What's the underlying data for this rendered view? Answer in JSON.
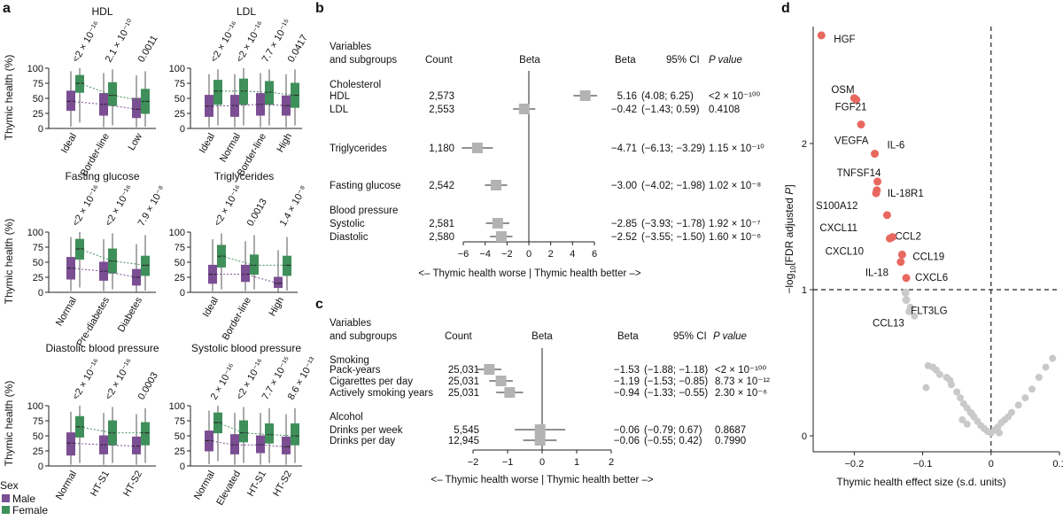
{
  "colors": {
    "male": "#7b4e93",
    "female": "#3f8f5a",
    "box_gray": "#b3b3b3",
    "hl": "#e8685f",
    "ns": "#c9c9c9"
  },
  "panel_a": {
    "letter": "a",
    "ylabel": "Thymic health (%)",
    "legend": {
      "title": "Sex",
      "items": [
        "Male",
        "Female"
      ]
    },
    "yticks": [
      "0",
      "25",
      "50",
      "75",
      "100"
    ]
  },
  "panel_b": {
    "letter": "b",
    "headers": {
      "var": "Variables",
      "var2": "and subgroups",
      "count": "Count",
      "beta_plot": "Beta",
      "beta": "Beta",
      "ci": "95% CI",
      "p": "P value"
    },
    "xticks": [
      "−6",
      "−4",
      "−2",
      "0",
      "2",
      "4",
      "6"
    ],
    "xlabel": "<– Thymic health worse | Thymic health better –>"
  },
  "panel_c": {
    "letter": "c",
    "headers": {
      "var": "Variables",
      "var2": "and subgroups",
      "count": "Count",
      "beta_plot": "Beta",
      "beta": "Beta",
      "ci": "95% CI",
      "p": "P value"
    },
    "xticks": [
      "−2",
      "−1",
      "0",
      "1",
      "2"
    ],
    "xlabel": "<– Thymic health worse | Thymic health better –>"
  },
  "panel_d": {
    "letter": "d",
    "xlabel": "Thymic health effect size (s.d. units)",
    "ylabel_main": "−log",
    "ylabel_sub": "10",
    "ylabel_rest": "[FDR adjusted ",
    "ylabel_p": "P",
    "ylabel_end": "]"
  },
  "chart_data": [
    {
      "type": "bar",
      "title": "HDL",
      "categories": [
        "Ideal",
        "Border-line",
        "Low"
      ],
      "pvalues": [
        "<2 × 10⁻¹⁶",
        "2.1 × 10⁻¹⁰",
        "0.0011"
      ],
      "series": [
        {
          "name": "Male",
          "q1": [
            30,
            22,
            18
          ],
          "median": [
            45,
            40,
            32
          ],
          "q3": [
            62,
            58,
            50
          ],
          "min": [
            3,
            2,
            2
          ],
          "max": [
            95,
            92,
            88
          ]
        },
        {
          "name": "Female",
          "q1": [
            60,
            38,
            25
          ],
          "median": [
            75,
            55,
            45
          ],
          "q3": [
            88,
            76,
            65
          ],
          "min": [
            10,
            5,
            3
          ],
          "max": [
            100,
            98,
            95
          ]
        }
      ],
      "ylim": [
        0,
        100
      ]
    },
    {
      "type": "bar",
      "title": "LDL",
      "categories": [
        "Ideal",
        "Normal",
        "Border-line",
        "High"
      ],
      "pvalues": [
        "<2 × 10⁻¹⁶",
        "<2 × 10⁻¹⁶",
        "7.7 × 10⁻¹⁵",
        "0.0417"
      ],
      "series": [
        {
          "name": "Male",
          "q1": [
            20,
            20,
            22,
            22
          ],
          "median": [
            37,
            38,
            40,
            38
          ],
          "q3": [
            55,
            55,
            58,
            54
          ],
          "min": [
            2,
            2,
            2,
            2
          ],
          "max": [
            90,
            90,
            92,
            90
          ]
        },
        {
          "name": "Female",
          "q1": [
            40,
            40,
            40,
            35
          ],
          "median": [
            62,
            62,
            60,
            55
          ],
          "q3": [
            80,
            82,
            78,
            75
          ],
          "min": [
            5,
            5,
            5,
            5
          ],
          "max": [
            98,
            100,
            98,
            98
          ]
        }
      ],
      "ylim": [
        0,
        100
      ]
    },
    {
      "type": "bar",
      "title": "Fasting glucose",
      "categories": [
        "Normal",
        "Pre-diabetes",
        "Diabetes"
      ],
      "pvalues": [
        "<2 × 10⁻¹⁶",
        "<2 × 10⁻¹⁶",
        "7.9 × 10⁻⁸"
      ],
      "series": [
        {
          "name": "Male",
          "q1": [
            22,
            20,
            12
          ],
          "median": [
            40,
            35,
            25
          ],
          "q3": [
            58,
            50,
            38
          ],
          "min": [
            2,
            2,
            1
          ],
          "max": [
            92,
            88,
            80
          ]
        },
        {
          "name": "Female",
          "q1": [
            55,
            32,
            28
          ],
          "median": [
            72,
            52,
            45
          ],
          "q3": [
            88,
            72,
            60
          ],
          "min": [
            8,
            5,
            3
          ],
          "max": [
            100,
            98,
            95
          ]
        }
      ],
      "ylim": [
        0,
        100
      ]
    },
    {
      "type": "bar",
      "title": "Triglycerides",
      "categories": [
        "Ideal",
        "Border-line",
        "High"
      ],
      "pvalues": [
        "<2 × 10⁻¹⁶",
        "0.0013",
        "1.4 × 10⁻⁸"
      ],
      "series": [
        {
          "name": "Male",
          "q1": [
            15,
            18,
            8
          ],
          "median": [
            30,
            30,
            15
          ],
          "q3": [
            45,
            45,
            25
          ],
          "min": [
            2,
            2,
            1
          ],
          "max": [
            88,
            85,
            70
          ]
        },
        {
          "name": "Female",
          "q1": [
            42,
            30,
            28
          ],
          "median": [
            60,
            45,
            45
          ],
          "q3": [
            78,
            62,
            60
          ],
          "min": [
            5,
            5,
            3
          ],
          "max": [
            98,
            95,
            92
          ]
        }
      ],
      "ylim": [
        0,
        100
      ]
    },
    {
      "type": "bar",
      "title": "Diastolic blood pressure",
      "categories": [
        "Normal",
        "HT-S1",
        "HT-S2"
      ],
      "pvalues": [
        "<2 × 10⁻¹⁶",
        "<2 × 10⁻¹⁶",
        "0.0003"
      ],
      "series": [
        {
          "name": "Male",
          "q1": [
            18,
            20,
            20
          ],
          "median": [
            38,
            35,
            33
          ],
          "q3": [
            55,
            50,
            48
          ],
          "min": [
            2,
            2,
            2
          ],
          "max": [
            90,
            88,
            86
          ]
        },
        {
          "name": "Female",
          "q1": [
            48,
            35,
            35
          ],
          "median": [
            65,
            55,
            55
          ],
          "q3": [
            82,
            75,
            72
          ],
          "min": [
            5,
            5,
            5
          ],
          "max": [
            100,
            98,
            96
          ]
        }
      ],
      "ylim": [
        0,
        100
      ]
    },
    {
      "type": "bar",
      "title": "Systolic blood pressure",
      "categories": [
        "Normal",
        "Elevated",
        "HT-S1",
        "HT-S2"
      ],
      "pvalues": [
        "2 × 10⁻¹⁶",
        "<2 × 10⁻¹⁶",
        "7.7 × 10⁻¹⁵",
        "8.6 × 10⁻¹³"
      ],
      "series": [
        {
          "name": "Male",
          "q1": [
            25,
            20,
            22,
            20
          ],
          "median": [
            42,
            35,
            35,
            32
          ],
          "q3": [
            58,
            52,
            50,
            48
          ],
          "min": [
            3,
            2,
            2,
            2
          ],
          "max": [
            92,
            88,
            88,
            86
          ]
        },
        {
          "name": "Female",
          "q1": [
            55,
            40,
            38,
            35
          ],
          "median": [
            72,
            55,
            52,
            50
          ],
          "q3": [
            88,
            75,
            70,
            70
          ],
          "min": [
            8,
            5,
            5,
            5
          ],
          "max": [
            100,
            98,
            96,
            96
          ]
        }
      ],
      "ylim": [
        0,
        100
      ]
    },
    {
      "type": "scatter",
      "title": "",
      "rows": [
        {
          "label": "Cholesterol",
          "header": true
        },
        {
          "label": "HDL",
          "count": "2,573",
          "beta": 5.16,
          "lo": 4.08,
          "hi": 6.25,
          "beta_txt": "5.16",
          "ci": "(4.08; 6.25)",
          "p": "<2 × 10⁻¹⁰⁰"
        },
        {
          "label": "LDL",
          "count": "2,553",
          "beta": -0.42,
          "lo": -1.43,
          "hi": 0.59,
          "beta_txt": "−0.42",
          "ci": "(−1.43; 0.59)",
          "p": "0.4108"
        },
        {
          "label": "Triglycerides",
          "count": "1,180",
          "beta": -4.71,
          "lo": -6.13,
          "hi": -3.29,
          "beta_txt": "−4.71",
          "ci": "(−6.13; −3.29)",
          "p": "1.15 × 10⁻¹⁰"
        },
        {
          "label": "Fasting glucose",
          "count": "2,542",
          "beta": -3.0,
          "lo": -4.02,
          "hi": -1.98,
          "beta_txt": "−3.00",
          "ci": "(−4.02; −1.98)",
          "p": "1.02 × 10⁻⁸"
        },
        {
          "label": "Blood pressure",
          "header": true
        },
        {
          "label": "Systolic",
          "count": "2,581",
          "beta": -2.85,
          "lo": -3.93,
          "hi": -1.78,
          "beta_txt": "−2.85",
          "ci": "(−3.93; −1.78)",
          "p": "1.92 × 10⁻⁷"
        },
        {
          "label": "Diastolic",
          "count": "2,580",
          "beta": -2.52,
          "lo": -3.55,
          "hi": -1.5,
          "beta_txt": "−2.52",
          "ci": "(−3.55; −1.50)",
          "p": "1.60 × 10⁻⁶"
        }
      ],
      "xlim": [
        -6,
        6
      ]
    },
    {
      "type": "scatter",
      "title": "",
      "rows": [
        {
          "label": "Smoking",
          "header": true
        },
        {
          "label": "Pack-years",
          "count": "25,031",
          "beta": -1.53,
          "lo": -1.88,
          "hi": -1.18,
          "beta_txt": "−1.53",
          "ci": "(−1.88; −1.18)",
          "p": "<2 × 10⁻¹⁰⁰"
        },
        {
          "label": "Cigarettes per day",
          "count": "25,031",
          "beta": -1.19,
          "lo": -1.53,
          "hi": -0.85,
          "beta_txt": "−1.19",
          "ci": "(−1.53; −0.85)",
          "p": "8.73 × 10⁻¹²"
        },
        {
          "label": "Actively smoking years",
          "count": "25,031",
          "beta": -0.94,
          "lo": -1.33,
          "hi": -0.55,
          "beta_txt": "−0.94",
          "ci": "(−1.33; −0.55)",
          "p": "2.30 × 10⁻⁶"
        },
        {
          "label": "Alcohol",
          "header": true
        },
        {
          "label": "Drinks per week",
          "count": "5,545",
          "beta": -0.06,
          "lo": -0.79,
          "hi": 0.67,
          "beta_txt": "−0.06",
          "ci": "(−0.79; 0.67)",
          "p": "0.8687"
        },
        {
          "label": "Drinks per day",
          "count": "12,945",
          "beta": -0.06,
          "lo": -0.55,
          "hi": 0.42,
          "beta_txt": "−0.06",
          "ci": "(−0.55; 0.42)",
          "p": "0.7990"
        }
      ],
      "xlim": [
        -2,
        2
      ]
    },
    {
      "type": "scatter",
      "title": "",
      "xticks": [
        "−0.2",
        "−0.1",
        "0",
        "0.1"
      ],
      "yticks": [
        "0",
        "1",
        "2"
      ],
      "xlim": [
        -0.26,
        0.1
      ],
      "ylim": [
        0,
        2.8
      ],
      "threshold_y": 1,
      "labeled": [
        {
          "label": "HGF",
          "x": -0.248,
          "y": 2.74
        },
        {
          "label": "OSM",
          "x": -0.2,
          "y": 2.31
        },
        {
          "label": "FGF21",
          "x": -0.197,
          "y": 2.3
        },
        {
          "label": "VEGFA",
          "x": -0.19,
          "y": 2.13
        },
        {
          "label": "IL-6",
          "x": -0.17,
          "y": 1.93
        },
        {
          "label": "TNFSF14",
          "x": -0.166,
          "y": 1.74
        },
        {
          "label": "S100A12",
          "x": -0.168,
          "y": 1.66
        },
        {
          "label": "IL-18R1",
          "x": -0.167,
          "y": 1.68
        },
        {
          "label": "CXCL11",
          "x": -0.152,
          "y": 1.51
        },
        {
          "label": "CCL2",
          "x": -0.148,
          "y": 1.35
        },
        {
          "label": "CXCL10",
          "x": -0.144,
          "y": 1.36
        },
        {
          "label": "CCL19",
          "x": -0.13,
          "y": 1.24
        },
        {
          "label": "IL-18",
          "x": -0.132,
          "y": 1.19
        },
        {
          "label": "CXCL6",
          "x": -0.124,
          "y": 1.08
        },
        {
          "label": "FLT3LG",
          "x": -0.125,
          "y": 0.98
        },
        {
          "label": "CCL13",
          "x": -0.124,
          "y": 0.93
        }
      ],
      "others": [
        [
          -0.12,
          0.85
        ],
        [
          -0.112,
          0.82
        ],
        [
          -0.118,
          0.88
        ],
        [
          -0.092,
          0.48
        ],
        [
          -0.085,
          0.47
        ],
        [
          -0.08,
          0.45
        ],
        [
          -0.075,
          0.42
        ],
        [
          -0.065,
          0.4
        ],
        [
          -0.06,
          0.38
        ],
        [
          -0.058,
          0.35
        ],
        [
          -0.05,
          0.3
        ],
        [
          -0.045,
          0.26
        ],
        [
          -0.04,
          0.22
        ],
        [
          -0.035,
          0.19
        ],
        [
          -0.03,
          0.16
        ],
        [
          -0.025,
          0.13
        ],
        [
          -0.02,
          0.1
        ],
        [
          -0.015,
          0.07
        ],
        [
          -0.01,
          0.05
        ],
        [
          -0.005,
          0.03
        ],
        [
          0.0,
          0.02
        ],
        [
          0.005,
          0.04
        ],
        [
          0.01,
          0.06
        ],
        [
          0.015,
          0.09
        ],
        [
          0.02,
          0.11
        ],
        [
          0.025,
          0.13
        ],
        [
          0.03,
          0.16
        ],
        [
          0.04,
          0.21
        ],
        [
          0.05,
          0.26
        ],
        [
          0.06,
          0.32
        ],
        [
          0.07,
          0.4
        ],
        [
          0.08,
          0.47
        ],
        [
          0.09,
          0.53
        ],
        [
          -0.095,
          0.33
        ],
        [
          -0.042,
          0.11
        ],
        [
          -0.035,
          0.08
        ],
        [
          -0.028,
          0.15
        ],
        [
          0.012,
          0.02
        ]
      ]
    }
  ]
}
